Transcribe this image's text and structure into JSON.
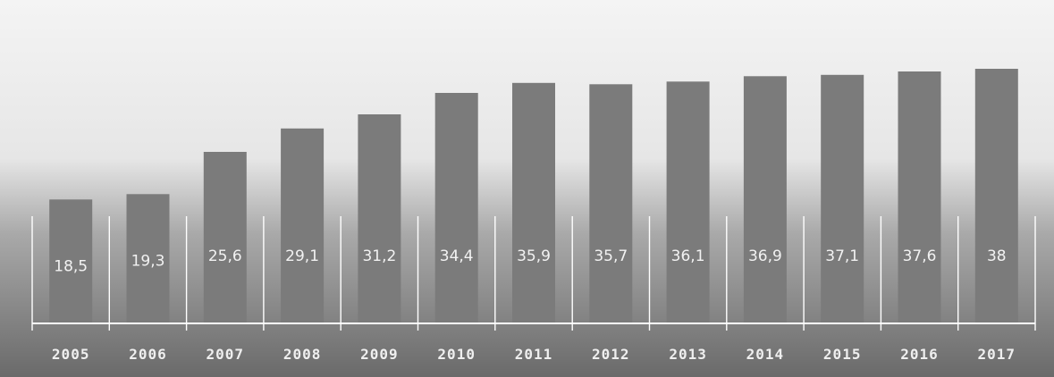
{
  "chart_data": {
    "type": "bar",
    "categories": [
      "2005",
      "2006",
      "2007",
      "2008",
      "2009",
      "2010",
      "2011",
      "2012",
      "2013",
      "2014",
      "2015",
      "2016",
      "2017"
    ],
    "values": [
      18.5,
      19.3,
      25.6,
      29.1,
      31.2,
      34.4,
      35.9,
      35.7,
      36.1,
      36.9,
      37.1,
      37.6,
      38
    ],
    "data_labels": [
      "18,5",
      "19,3",
      "25,6",
      "29,1",
      "31,2",
      "34,4",
      "35,9",
      "35,7",
      "36,1",
      "36,9",
      "37,1",
      "37,6",
      "38"
    ],
    "title": "",
    "xlabel": "",
    "ylabel": "",
    "legend": "none",
    "grid": false,
    "colors": {
      "bar": "#7b7b7b",
      "label": "#f2f2f2",
      "axis": "#ffffff",
      "background_top": "#f4f4f4",
      "background_bottom": "#6a6a6a"
    }
  }
}
